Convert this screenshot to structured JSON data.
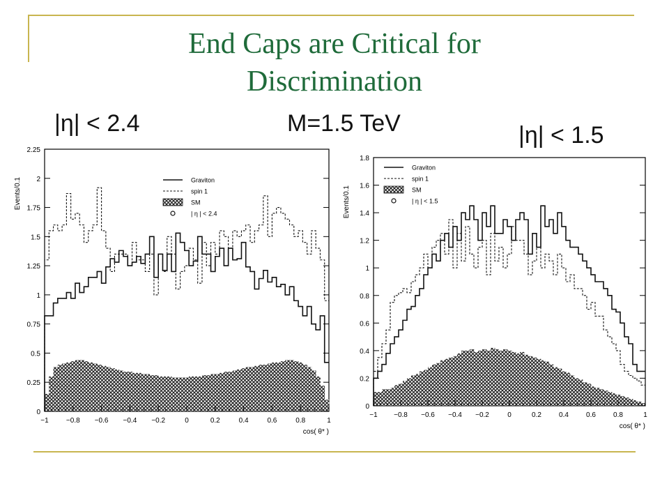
{
  "slide": {
    "title": "End Caps are Critical for\nDiscrimination",
    "header_left": "|η| < 2.4",
    "header_center": "M=1.5 TeV",
    "header_right": "|η| < 1.5",
    "colors": {
      "title": "#1f6b3a",
      "rules": "#c8b54f"
    }
  },
  "chart_data": [
    {
      "type": "histogram",
      "ylabel": "Events/0.1",
      "xlabel": "cos( θ* )",
      "xlim": [
        -1,
        1
      ],
      "ylim": [
        0,
        2.25
      ],
      "yticks": [
        0,
        0.25,
        0.5,
        0.75,
        1,
        1.25,
        1.5,
        1.75,
        2,
        2.25
      ],
      "xticks": [
        -1,
        -0.8,
        -0.6,
        -0.4,
        -0.2,
        0,
        0.2,
        0.4,
        0.6,
        0.8,
        1
      ],
      "ytick_labels": [
        "0",
        "0.25",
        "0.5",
        "0.75",
        "1",
        "1.25",
        "1.5",
        "1.75",
        "2",
        "2.25"
      ],
      "xtick_labels": [
        "−1",
        "−0.8",
        "−0.6",
        "−0.4",
        "−0.2",
        "0",
        "0.2",
        "0.4",
        "0.6",
        "0.8",
        "1"
      ],
      "legend": {
        "position": "top-right",
        "entries": [
          "Graviton",
          "spin 1",
          "SM",
          "| η | < 2.4"
        ]
      },
      "bin_edges_range": [
        -1,
        1
      ],
      "series": [
        {
          "name": "Graviton",
          "style": "solid",
          "values": [
            0.82,
            0.82,
            0.93,
            0.97,
            0.97,
            1.02,
            0.97,
            1.1,
            1.02,
            1.07,
            1.15,
            1.15,
            1.2,
            1.1,
            1.24,
            1.31,
            1.28,
            1.38,
            1.33,
            1.25,
            1.28,
            1.33,
            1.27,
            1.35,
            1.5,
            1.15,
            1.35,
            1.21,
            1.35,
            1.2,
            1.53,
            1.45,
            1.38,
            1.25,
            1.29,
            1.5,
            1.35,
            1.35,
            1.2,
            1.33,
            1.4,
            1.25,
            1.4,
            1.3,
            1.31,
            1.45,
            1.24,
            1.2,
            1.05,
            1.14,
            1.21,
            1.11,
            1.15,
            1.07,
            1.09,
            1.0,
            1.07,
            0.95,
            0.9,
            0.82,
            0.9,
            0.75,
            0.7,
            0.82,
            0.42
          ]
        },
        {
          "name": "spin 1",
          "style": "dashed",
          "values": [
            1.3,
            1.55,
            1.6,
            1.55,
            1.6,
            1.87,
            1.65,
            1.7,
            1.6,
            1.45,
            1.55,
            1.6,
            1.92,
            1.55,
            1.4,
            1.2,
            1.35,
            1.35,
            1.35,
            1.25,
            1.45,
            1.3,
            1.3,
            1.2,
            1.35,
            1.0,
            1.35,
            1.2,
            1.5,
            1.35,
            1.05,
            1.2,
            1.25,
            1.4,
            1.3,
            1.1,
            1.45,
            1.25,
            1.45,
            1.35,
            1.55,
            1.5,
            1.4,
            1.55,
            1.5,
            1.55,
            1.6,
            1.45,
            1.55,
            1.6,
            1.85,
            1.5,
            1.7,
            1.75,
            1.7,
            1.65,
            1.6,
            1.5,
            1.55,
            1.45,
            1.35,
            1.55,
            1.4,
            1.3,
            0.95
          ]
        },
        {
          "name": "SM",
          "style": "hatched",
          "values": [
            0.15,
            0.3,
            0.38,
            0.4,
            0.41,
            0.42,
            0.43,
            0.44,
            0.44,
            0.43,
            0.42,
            0.41,
            0.4,
            0.39,
            0.38,
            0.37,
            0.36,
            0.35,
            0.34,
            0.34,
            0.33,
            0.33,
            0.32,
            0.32,
            0.31,
            0.31,
            0.3,
            0.3,
            0.3,
            0.29,
            0.29,
            0.29,
            0.29,
            0.3,
            0.3,
            0.3,
            0.31,
            0.31,
            0.32,
            0.32,
            0.33,
            0.34,
            0.34,
            0.35,
            0.36,
            0.37,
            0.38,
            0.38,
            0.39,
            0.4,
            0.4,
            0.41,
            0.42,
            0.42,
            0.43,
            0.44,
            0.44,
            0.43,
            0.42,
            0.4,
            0.38,
            0.35,
            0.3,
            0.22,
            0.1
          ]
        }
      ]
    },
    {
      "type": "histogram",
      "ylabel": "Events/0.1",
      "xlabel": "cos( θ* )",
      "xlim": [
        -1,
        1
      ],
      "ylim": [
        0,
        1.8
      ],
      "yticks": [
        0,
        0.2,
        0.4,
        0.6,
        0.8,
        1,
        1.2,
        1.4,
        1.6,
        1.8
      ],
      "xticks": [
        -1,
        -0.8,
        -0.6,
        -0.4,
        -0.2,
        0,
        0.2,
        0.4,
        0.6,
        0.8,
        1
      ],
      "ytick_labels": [
        "0",
        "0.2",
        "0.4",
        "0.6",
        "0.8",
        "1",
        "1.2",
        "1.4",
        "1.6",
        "1.8"
      ],
      "xtick_labels": [
        "−1",
        "−0.8",
        "−0.6",
        "−0.4",
        "−0.2",
        "0",
        "0.2",
        "0.4",
        "0.6",
        "0.8",
        "1"
      ],
      "legend": {
        "position": "top-right",
        "entries": [
          "Graviton",
          "spin 1",
          "SM",
          "| η | < 1.5"
        ]
      },
      "bin_edges_range": [
        -1,
        1
      ],
      "series": [
        {
          "name": "Graviton",
          "style": "solid",
          "values": [
            0.2,
            0.25,
            0.3,
            0.38,
            0.45,
            0.5,
            0.55,
            0.62,
            0.7,
            0.72,
            0.8,
            0.85,
            0.95,
            1.0,
            1.1,
            1.05,
            1.2,
            1.25,
            1.15,
            1.3,
            1.2,
            1.4,
            1.35,
            1.45,
            1.35,
            1.2,
            1.4,
            1.3,
            1.45,
            1.25,
            1.25,
            1.35,
            1.3,
            1.2,
            1.35,
            1.4,
            1.35,
            1.1,
            1.25,
            1.15,
            1.45,
            1.3,
            1.35,
            1.25,
            1.4,
            1.3,
            1.2,
            1.15,
            1.15,
            1.1,
            1.05,
            1.0,
            0.95,
            0.9,
            0.9,
            0.85,
            0.8,
            0.7,
            0.68,
            0.6,
            0.5,
            0.45,
            0.3,
            0.25,
            0.25
          ]
        },
        {
          "name": "spin 1",
          "style": "dashed",
          "values": [
            0.25,
            0.35,
            0.45,
            0.55,
            0.75,
            0.8,
            0.82,
            0.85,
            0.82,
            0.9,
            0.95,
            1.0,
            1.1,
            1.0,
            1.15,
            1.2,
            1.25,
            1.1,
            1.35,
            1.0,
            1.25,
            1.05,
            1.3,
            1.1,
            1.0,
            1.15,
            1.2,
            0.95,
            1.25,
            1.05,
            1.15,
            1.0,
            1.1,
            1.3,
            1.2,
            1.2,
            1.1,
            0.95,
            1.05,
            1.15,
            1.0,
            1.1,
            1.05,
            0.95,
            1.1,
            1.0,
            0.9,
            0.95,
            0.85,
            0.85,
            0.8,
            0.7,
            0.75,
            0.65,
            0.65,
            0.55,
            0.5,
            0.45,
            0.4,
            0.3,
            0.25,
            0.22,
            0.2,
            0.18,
            0.15
          ]
        },
        {
          "name": "SM",
          "style": "hatched",
          "values": [
            0.1,
            0.1,
            0.12,
            0.12,
            0.13,
            0.15,
            0.16,
            0.18,
            0.2,
            0.22,
            0.23,
            0.25,
            0.26,
            0.28,
            0.3,
            0.31,
            0.33,
            0.34,
            0.35,
            0.36,
            0.38,
            0.4,
            0.4,
            0.41,
            0.39,
            0.4,
            0.41,
            0.4,
            0.42,
            0.41,
            0.4,
            0.41,
            0.4,
            0.39,
            0.38,
            0.39,
            0.37,
            0.36,
            0.35,
            0.34,
            0.33,
            0.32,
            0.3,
            0.28,
            0.27,
            0.25,
            0.24,
            0.22,
            0.2,
            0.19,
            0.17,
            0.16,
            0.14,
            0.13,
            0.12,
            0.11,
            0.1,
            0.09,
            0.08,
            0.07,
            0.06,
            0.05,
            0.04,
            0.03,
            0.02
          ]
        }
      ]
    }
  ]
}
